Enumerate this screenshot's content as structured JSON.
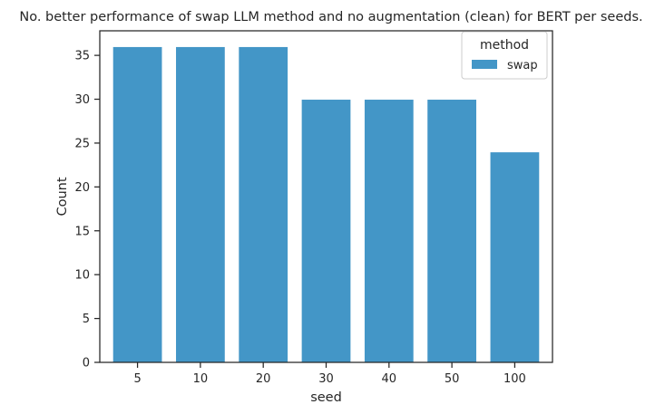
{
  "chart_data": {
    "type": "bar",
    "title": "No. better performance of swap LLM method and no augmentation (clean) for BERT per seeds.",
    "xlabel": "seed",
    "ylabel": "Count",
    "categories": [
      "5",
      "10",
      "20",
      "30",
      "40",
      "50",
      "100"
    ],
    "series": [
      {
        "name": "swap",
        "values": [
          36,
          36,
          36,
          30,
          30,
          30,
          24
        ]
      }
    ],
    "ylim": [
      0,
      37.8
    ],
    "yticks": [
      0,
      5,
      10,
      15,
      20,
      25,
      30,
      35
    ],
    "grid": false,
    "legend": {
      "title": "method",
      "placement": "top-right"
    },
    "colors": {
      "bar": "#4396c7",
      "axis": "#262626"
    }
  }
}
